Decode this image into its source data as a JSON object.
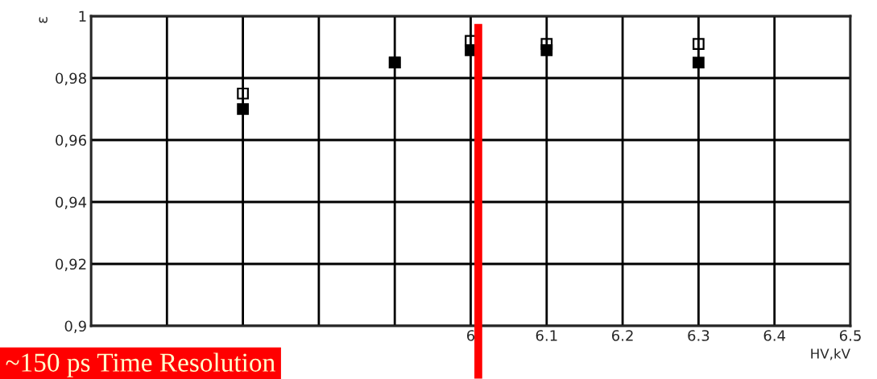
{
  "chart_data": {
    "type": "scatter",
    "xlabel": "HV,kV",
    "ylabel": "ε",
    "x": [
      5.7,
      5.9,
      6.0,
      6.1,
      6.3
    ],
    "series": [
      {
        "color": "#000000",
        "values": [
          0.975,
          0.985,
          0.992,
          0.991,
          0.991
        ],
        "marker": "square-open"
      },
      {
        "color": "#000000",
        "values": [
          0.97,
          0.985,
          0.989,
          0.989,
          0.985
        ],
        "marker": "square"
      }
    ],
    "grid": true,
    "legend": false,
    "xlim": [
      5.5,
      6.5
    ],
    "xticks": [
      {
        "value": 5.5,
        "label": null
      },
      {
        "value": 5.6,
        "label": null
      },
      {
        "value": 5.7,
        "label": null
      },
      {
        "value": 5.8,
        "label": null
      },
      {
        "value": 5.9,
        "label": null
      },
      6,
      6.1,
      6.2,
      6.3,
      6.4,
      6.5
    ],
    "ylim": [
      0.9,
      1
    ],
    "yticks": [
      {
        "value": 0.9,
        "label": "0,9"
      },
      {
        "value": 0.92,
        "label": "0,92"
      },
      {
        "value": 0.94,
        "label": "0,94"
      },
      {
        "value": 0.96,
        "label": "0,96"
      },
      {
        "value": 0.98,
        "label": "0,98"
      },
      1
    ],
    "ref_lines": [
      {
        "axis": "x",
        "value": 6.01,
        "color": "#ff0000"
      }
    ],
    "annotations": [
      "~150 ps Time Resolution"
    ]
  }
}
